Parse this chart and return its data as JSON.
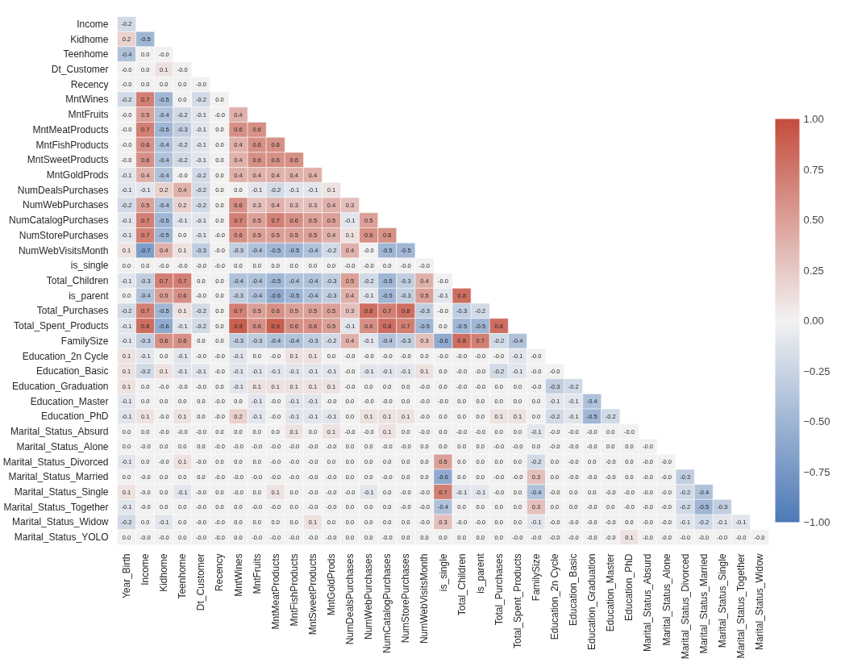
{
  "chart_data": {
    "type": "heatmap",
    "categories": [
      "Year_Birth",
      "Income",
      "Kidhome",
      "Teenhome",
      "Dt_Customer",
      "Recency",
      "MntWines",
      "MntFruits",
      "MntMeatProducts",
      "MntFishProducts",
      "MntSweetProducts",
      "MntGoldProds",
      "NumDealsPurchases",
      "NumWebPurchases",
      "NumCatalogPurchases",
      "NumStorePurchases",
      "NumWebVisitsMonth",
      "is_single",
      "Total_Children",
      "is_parent",
      "Total_Purchases",
      "Total_Spent_Products",
      "FamilySize",
      "Education_2n Cycle",
      "Education_Basic",
      "Education_Graduation",
      "Education_Master",
      "Education_PhD",
      "Marital_Status_Absurd",
      "Marital_Status_Alone",
      "Marital_Status_Divorced",
      "Marital_Status_Married",
      "Marital_Status_Single",
      "Marital_Status_Together",
      "Marital_Status_Widow"
    ],
    "y_categories": [
      "Income",
      "Kidhome",
      "Teenhome",
      "Dt_Customer",
      "Recency",
      "MntWines",
      "MntFruits",
      "MntMeatProducts",
      "MntFishProducts",
      "MntSweetProducts",
      "MntGoldProds",
      "NumDealsPurchases",
      "NumWebPurchases",
      "NumCatalogPurchases",
      "NumStorePurchases",
      "NumWebVisitsMonth",
      "is_single",
      "Total_Children",
      "is_parent",
      "Total_Purchases",
      "Total_Spent_Products",
      "FamilySize",
      "Education_2n Cycle",
      "Education_Basic",
      "Education_Graduation",
      "Education_Master",
      "Education_PhD",
      "Marital_Status_Absurd",
      "Marital_Status_Alone",
      "Marital_Status_Divorced",
      "Marital_Status_Married",
      "Marital_Status_Single",
      "Marital_Status_Together",
      "Marital_Status_Widow",
      "Marital_Status_YOLO"
    ],
    "cells": [
      [
        -0.2,
        null,
        null,
        null,
        null,
        null,
        null,
        null,
        null,
        null,
        null,
        null,
        null,
        null,
        null,
        null,
        null,
        null,
        null,
        null,
        null,
        null,
        null,
        null,
        null,
        null,
        null,
        null,
        null,
        null,
        null,
        null,
        null,
        null,
        null
      ],
      [
        0.2,
        -0.5,
        null,
        null,
        null,
        null,
        null,
        null,
        null,
        null,
        null,
        null,
        null,
        null,
        null,
        null,
        null,
        null,
        null,
        null,
        null,
        null,
        null,
        null,
        null,
        null,
        null,
        null,
        null,
        null,
        null,
        null,
        null,
        null,
        null
      ],
      [
        -0.4,
        0.0,
        -0.0,
        null,
        null,
        null,
        null,
        null,
        null,
        null,
        null,
        null,
        null,
        null,
        null,
        null,
        null,
        null,
        null,
        null,
        null,
        null,
        null,
        null,
        null,
        null,
        null,
        null,
        null,
        null,
        null,
        null,
        null,
        null,
        null
      ],
      [
        -0.0,
        0.0,
        0.1,
        -0.0,
        null,
        null,
        null,
        null,
        null,
        null,
        null,
        null,
        null,
        null,
        null,
        null,
        null,
        null,
        null,
        null,
        null,
        null,
        null,
        null,
        null,
        null,
        null,
        null,
        null,
        null,
        null,
        null,
        null,
        null,
        null
      ],
      [
        -0.0,
        0.0,
        0.0,
        0.0,
        -0.0,
        null,
        null,
        null,
        null,
        null,
        null,
        null,
        null,
        null,
        null,
        null,
        null,
        null,
        null,
        null,
        null,
        null,
        null,
        null,
        null,
        null,
        null,
        null,
        null,
        null,
        null,
        null,
        null,
        null,
        null
      ],
      [
        -0.2,
        0.7,
        -0.5,
        0.0,
        -0.2,
        0.0,
        null,
        null,
        null,
        null,
        null,
        null,
        null,
        null,
        null,
        null,
        null,
        null,
        null,
        null,
        null,
        null,
        null,
        null,
        null,
        null,
        null,
        null,
        null,
        null,
        null,
        null,
        null,
        null,
        null
      ],
      [
        -0.0,
        0.5,
        -0.4,
        -0.2,
        -0.1,
        -0.0,
        0.4,
        null,
        null,
        null,
        null,
        null,
        null,
        null,
        null,
        null,
        null,
        null,
        null,
        null,
        null,
        null,
        null,
        null,
        null,
        null,
        null,
        null,
        null,
        null,
        null,
        null,
        null,
        null,
        null
      ],
      [
        -0.0,
        0.7,
        -0.5,
        -0.3,
        -0.1,
        0.0,
        0.6,
        0.6,
        null,
        null,
        null,
        null,
        null,
        null,
        null,
        null,
        null,
        null,
        null,
        null,
        null,
        null,
        null,
        null,
        null,
        null,
        null,
        null,
        null,
        null,
        null,
        null,
        null,
        null,
        null
      ],
      [
        -0.0,
        0.6,
        -0.4,
        -0.2,
        -0.1,
        0.0,
        0.4,
        0.6,
        0.6,
        null,
        null,
        null,
        null,
        null,
        null,
        null,
        null,
        null,
        null,
        null,
        null,
        null,
        null,
        null,
        null,
        null,
        null,
        null,
        null,
        null,
        null,
        null,
        null,
        null,
        null
      ],
      [
        -0.0,
        0.6,
        -0.4,
        -0.2,
        -0.1,
        0.0,
        0.4,
        0.6,
        0.6,
        0.6,
        null,
        null,
        null,
        null,
        null,
        null,
        null,
        null,
        null,
        null,
        null,
        null,
        null,
        null,
        null,
        null,
        null,
        null,
        null,
        null,
        null,
        null,
        null,
        null,
        null
      ],
      [
        -0.1,
        0.4,
        -0.4,
        -0.0,
        -0.2,
        0.0,
        0.4,
        0.4,
        0.4,
        0.4,
        0.4,
        null,
        null,
        null,
        null,
        null,
        null,
        null,
        null,
        null,
        null,
        null,
        null,
        null,
        null,
        null,
        null,
        null,
        null,
        null,
        null,
        null,
        null,
        null,
        null
      ],
      [
        -0.1,
        -0.1,
        0.2,
        0.4,
        -0.2,
        0.0,
        0.0,
        -0.1,
        -0.2,
        -0.1,
        -0.1,
        0.1,
        null,
        null,
        null,
        null,
        null,
        null,
        null,
        null,
        null,
        null,
        null,
        null,
        null,
        null,
        null,
        null,
        null,
        null,
        null,
        null,
        null,
        null,
        null
      ],
      [
        -0.2,
        0.5,
        -0.4,
        0.2,
        -0.2,
        0.0,
        0.6,
        0.3,
        0.4,
        0.3,
        0.3,
        0.4,
        0.3,
        null,
        null,
        null,
        null,
        null,
        null,
        null,
        null,
        null,
        null,
        null,
        null,
        null,
        null,
        null,
        null,
        null,
        null,
        null,
        null,
        null,
        null
      ],
      [
        -0.1,
        0.7,
        -0.5,
        -0.1,
        -0.1,
        0.0,
        0.7,
        0.5,
        0.7,
        0.6,
        0.5,
        0.5,
        -0.1,
        0.5,
        null,
        null,
        null,
        null,
        null,
        null,
        null,
        null,
        null,
        null,
        null,
        null,
        null,
        null,
        null,
        null,
        null,
        null,
        null,
        null,
        null
      ],
      [
        -0.1,
        0.7,
        -0.5,
        0.0,
        -0.1,
        -0.0,
        0.6,
        0.5,
        0.5,
        0.5,
        0.5,
        0.4,
        0.1,
        0.6,
        0.6,
        null,
        null,
        null,
        null,
        null,
        null,
        null,
        null,
        null,
        null,
        null,
        null,
        null,
        null,
        null,
        null,
        null,
        null,
        null,
        null
      ],
      [
        0.1,
        -0.7,
        0.4,
        0.1,
        -0.3,
        -0.0,
        -0.3,
        -0.4,
        -0.5,
        -0.5,
        -0.4,
        -0.2,
        0.4,
        -0.0,
        -0.5,
        -0.5,
        null,
        null,
        null,
        null,
        null,
        null,
        null,
        null,
        null,
        null,
        null,
        null,
        null,
        null,
        null,
        null,
        null,
        null,
        null
      ],
      [
        0.0,
        0.0,
        -0.0,
        -0.0,
        -0.0,
        -0.0,
        0.0,
        0.0,
        0.0,
        0.0,
        0.0,
        0.0,
        -0.0,
        -0.0,
        0.0,
        -0.0,
        -0.0,
        null,
        null,
        null,
        null,
        null,
        null,
        null,
        null,
        null,
        null,
        null,
        null,
        null,
        null,
        null,
        null,
        null,
        null
      ],
      [
        -0.1,
        -0.3,
        0.7,
        0.7,
        0.0,
        0.0,
        -0.4,
        -0.4,
        -0.5,
        -0.4,
        -0.4,
        -0.3,
        0.5,
        -0.2,
        -0.5,
        -0.3,
        0.4,
        -0.0,
        null,
        null,
        null,
        null,
        null,
        null,
        null,
        null,
        null,
        null,
        null,
        null,
        null,
        null,
        null,
        null,
        null
      ],
      [
        0.0,
        -0.4,
        0.5,
        0.6,
        -0.0,
        0.0,
        -0.3,
        -0.4,
        -0.6,
        -0.5,
        -0.4,
        -0.3,
        0.4,
        -0.1,
        -0.5,
        -0.3,
        0.5,
        -0.1,
        0.8,
        null,
        null,
        null,
        null,
        null,
        null,
        null,
        null,
        null,
        null,
        null,
        null,
        null,
        null,
        null,
        null
      ],
      [
        -0.2,
        0.7,
        -0.5,
        0.1,
        -0.2,
        0.0,
        0.7,
        0.5,
        0.6,
        0.5,
        0.5,
        0.5,
        0.3,
        0.8,
        0.7,
        0.8,
        -0.3,
        -0.0,
        -0.3,
        -0.2,
        null,
        null,
        null,
        null,
        null,
        null,
        null,
        null,
        null,
        null,
        null,
        null,
        null,
        null,
        null
      ],
      [
        -0.1,
        0.8,
        -0.6,
        -0.1,
        -0.2,
        0.0,
        0.9,
        0.6,
        0.9,
        0.6,
        0.6,
        0.5,
        -0.1,
        0.6,
        0.8,
        0.7,
        -0.5,
        0.0,
        -0.5,
        -0.5,
        0.8,
        null,
        null,
        null,
        null,
        null,
        null,
        null,
        null,
        null,
        null,
        null,
        null,
        null,
        null
      ],
      [
        -0.1,
        -0.3,
        0.6,
        0.6,
        0.0,
        0.0,
        -0.3,
        -0.3,
        -0.4,
        -0.4,
        -0.3,
        -0.2,
        0.4,
        -0.1,
        -0.4,
        -0.3,
        0.3,
        -0.6,
        0.8,
        0.7,
        -0.2,
        -0.4,
        null,
        null,
        null,
        null,
        null,
        null,
        null,
        null,
        null,
        null,
        null,
        null,
        null
      ],
      [
        0.1,
        -0.1,
        0.0,
        -0.1,
        -0.0,
        -0.0,
        -0.1,
        0.0,
        -0.0,
        0.1,
        0.1,
        0.0,
        -0.0,
        -0.0,
        -0.0,
        -0.0,
        0.0,
        -0.0,
        -0.0,
        -0.0,
        -0.0,
        -0.1,
        -0.0,
        null,
        null,
        null,
        null,
        null,
        null,
        null,
        null,
        null,
        null,
        null,
        null
      ],
      [
        0.1,
        -0.2,
        0.1,
        -0.1,
        -0.1,
        -0.0,
        -0.1,
        -0.1,
        -0.1,
        -0.1,
        -0.1,
        -0.1,
        -0.0,
        -0.1,
        -0.1,
        -0.1,
        0.1,
        0.0,
        -0.0,
        -0.0,
        -0.2,
        -0.1,
        -0.0,
        -0.0,
        null,
        null,
        null,
        null,
        null,
        null,
        null,
        null,
        null,
        null,
        null
      ],
      [
        0.1,
        0.0,
        -0.0,
        -0.0,
        -0.0,
        0.0,
        -0.1,
        0.1,
        0.1,
        0.1,
        0.1,
        0.1,
        -0.0,
        0.0,
        0.0,
        0.0,
        -0.0,
        0.0,
        -0.0,
        -0.0,
        0.0,
        0.0,
        -0.0,
        -0.3,
        -0.2,
        null,
        null,
        null,
        null,
        null,
        null,
        null,
        null,
        null,
        null
      ],
      [
        -0.1,
        0.0,
        0.0,
        0.0,
        0.0,
        -0.0,
        0.0,
        -0.1,
        -0.0,
        -0.1,
        -0.1,
        -0.0,
        0.0,
        -0.0,
        -0.0,
        0.0,
        -0.0,
        -0.0,
        0.0,
        0.0,
        0.0,
        0.0,
        0.0,
        -0.1,
        -0.1,
        -0.4,
        null,
        null,
        null,
        null,
        null,
        null,
        null,
        null,
        null
      ],
      [
        -0.1,
        0.1,
        -0.0,
        0.1,
        0.0,
        -0.0,
        0.2,
        -0.1,
        -0.0,
        -0.1,
        -0.1,
        -0.1,
        0.0,
        0.1,
        0.1,
        0.1,
        -0.0,
        0.0,
        0.0,
        0.0,
        0.1,
        0.1,
        0.0,
        -0.2,
        -0.1,
        -0.5,
        -0.2,
        null,
        null,
        null,
        null,
        null,
        null,
        null,
        null
      ],
      [
        0.0,
        0.0,
        -0.0,
        -0.0,
        -0.0,
        0.0,
        0.0,
        0.0,
        0.0,
        0.1,
        0.0,
        0.1,
        -0.0,
        -0.0,
        0.1,
        0.0,
        -0.0,
        0.0,
        -0.0,
        -0.0,
        0.0,
        0.0,
        -0.1,
        -0.0,
        -0.0,
        -0.0,
        0.0,
        -0.0,
        null,
        null,
        null,
        null,
        null,
        null,
        null
      ],
      [
        0.0,
        -0.0,
        0.0,
        0.0,
        0.0,
        -0.0,
        -0.0,
        -0.0,
        -0.0,
        -0.0,
        -0.0,
        -0.0,
        0.0,
        0.0,
        -0.0,
        -0.0,
        0.0,
        0.0,
        0.0,
        0.0,
        -0.0,
        -0.0,
        0.0,
        -0.0,
        -0.0,
        -0.0,
        0.0,
        0.0,
        -0.0,
        null,
        null,
        null,
        null,
        null,
        null
      ],
      [
        -0.1,
        0.0,
        -0.0,
        0.1,
        -0.0,
        0.0,
        0.0,
        0.0,
        -0.0,
        -0.0,
        -0.0,
        0.0,
        0.0,
        0.0,
        0.0,
        0.0,
        0.0,
        0.5,
        0.0,
        0.0,
        0.0,
        0.0,
        -0.2,
        0.0,
        -0.0,
        0.0,
        -0.0,
        0.0,
        -0.0,
        -0.0,
        null,
        null,
        null,
        null,
        null
      ],
      [
        0.0,
        -0.0,
        0.0,
        0.0,
        0.0,
        -0.0,
        -0.0,
        -0.0,
        -0.0,
        -0.0,
        -0.0,
        -0.0,
        0.0,
        0.0,
        -0.0,
        0.0,
        0.0,
        -0.6,
        0.0,
        0.0,
        -0.0,
        -0.0,
        0.3,
        0.0,
        -0.0,
        -0.0,
        -0.0,
        0.0,
        -0.0,
        -0.0,
        -0.3,
        null,
        null,
        null,
        null
      ],
      [
        0.1,
        -0.0,
        0.0,
        -0.1,
        -0.0,
        0.0,
        -0.0,
        0.0,
        0.1,
        0.0,
        -0.0,
        -0.0,
        -0.0,
        -0.1,
        0.0,
        -0.0,
        -0.0,
        0.7,
        -0.1,
        -0.1,
        -0.0,
        0.0,
        -0.4,
        -0.0,
        0.0,
        0.0,
        -0.0,
        -0.0,
        -0.0,
        -0.0,
        -0.2,
        -0.4,
        null,
        null,
        null
      ],
      [
        -0.1,
        -0.0,
        0.0,
        0.0,
        -0.0,
        0.0,
        0.0,
        -0.0,
        -0.0,
        0.0,
        -0.0,
        -0.0,
        0.0,
        0.0,
        0.0,
        -0.0,
        -0.0,
        -0.4,
        0.0,
        0.0,
        0.0,
        0.0,
        0.3,
        0.0,
        0.0,
        -0.0,
        0.0,
        -0.0,
        -0.0,
        -0.0,
        -0.2,
        -0.5,
        -0.3,
        null,
        null
      ],
      [
        -0.2,
        0.0,
        -0.1,
        0.0,
        -0.0,
        -0.0,
        0.0,
        0.0,
        0.0,
        0.0,
        0.1,
        0.0,
        0.0,
        0.0,
        0.0,
        0.0,
        -0.0,
        0.3,
        -0.0,
        -0.0,
        0.0,
        0.0,
        -0.1,
        -0.0,
        -0.0,
        -0.0,
        -0.0,
        0.0,
        -0.0,
        -0.0,
        -0.1,
        -0.2,
        -0.1,
        -0.1,
        null
      ],
      [
        0.0,
        -0.0,
        -0.0,
        0.0,
        -0.0,
        -0.0,
        0.0,
        -0.0,
        -0.0,
        -0.0,
        -0.0,
        -0.0,
        0.0,
        0.0,
        -0.0,
        0.0,
        0.0,
        0.0,
        0.0,
        0.0,
        0.0,
        -0.0,
        -0.0,
        -0.0,
        -0.0,
        -0.0,
        -0.0,
        0.1,
        -0.0,
        -0.0,
        -0.0,
        -0.0,
        -0.0,
        -0.0,
        -0.0
      ]
    ],
    "cell_labels": [
      [
        "-0.2",
        null,
        null,
        null,
        null,
        null,
        null,
        null,
        null,
        null,
        null,
        null,
        null,
        null,
        null,
        null,
        null,
        null,
        null,
        null,
        null,
        null,
        null,
        null,
        null,
        null,
        null,
        null,
        null,
        null,
        null,
        null,
        null,
        null,
        null
      ],
      [
        "0.2",
        "-0.5",
        null,
        null,
        null,
        null,
        null,
        null,
        null,
        null,
        null,
        null,
        null,
        null,
        null,
        null,
        null,
        null,
        null,
        null,
        null,
        null,
        null,
        null,
        null,
        null,
        null,
        null,
        null,
        null,
        null,
        null,
        null,
        null,
        null
      ],
      [
        "-0.4",
        "0.0",
        "-0.0",
        null,
        null,
        null,
        null,
        null,
        null,
        null,
        null,
        null,
        null,
        null,
        null,
        null,
        null,
        null,
        null,
        null,
        null,
        null,
        null,
        null,
        null,
        null,
        null,
        null,
        null,
        null,
        null,
        null,
        null,
        null,
        null
      ],
      [
        "-0.0",
        "0.0",
        "0.1",
        "-0.0",
        null,
        null,
        null,
        null,
        null,
        null,
        null,
        null,
        null,
        null,
        null,
        null,
        null,
        null,
        null,
        null,
        null,
        null,
        null,
        null,
        null,
        null,
        null,
        null,
        null,
        null,
        null,
        null,
        null,
        null,
        null
      ],
      [
        "-0.0",
        "0.0",
        "0.0",
        "0.0",
        "-0.0",
        null,
        null,
        null,
        null,
        null,
        null,
        null,
        null,
        null,
        null,
        null,
        null,
        null,
        null,
        null,
        null,
        null,
        null,
        null,
        null,
        null,
        null,
        null,
        null,
        null,
        null,
        null,
        null,
        null,
        null
      ],
      [
        "-0.2",
        "0.7",
        "-0.5",
        "0.0",
        "-0.2",
        "0.0",
        null,
        null,
        null,
        null,
        null,
        null,
        null,
        null,
        null,
        null,
        null,
        null,
        null,
        null,
        null,
        null,
        null,
        null,
        null,
        null,
        null,
        null,
        null,
        null,
        null,
        null,
        null,
        null,
        null
      ],
      [
        "-0.0",
        "0.5",
        "-0.4",
        "-0.2",
        "-0.1",
        "-0.0",
        "0.4",
        null,
        null,
        null,
        null,
        null,
        null,
        null,
        null,
        null,
        null,
        null,
        null,
        null,
        null,
        null,
        null,
        null,
        null,
        null,
        null,
        null,
        null,
        null,
        null,
        null,
        null,
        null,
        null
      ],
      [
        "-0.0",
        "0.7",
        "-0.5",
        "-0.3",
        "-0.1",
        "0.0",
        "0.6",
        "0.6",
        null,
        null,
        null,
        null,
        null,
        null,
        null,
        null,
        null,
        null,
        null,
        null,
        null,
        null,
        null,
        null,
        null,
        null,
        null,
        null,
        null,
        null,
        null,
        null,
        null,
        null,
        null
      ],
      [
        "-0.0",
        "0.6",
        "-0.4",
        "-0.2",
        "-0.1",
        "0.0",
        "0.4",
        "0.6",
        "0.6",
        null,
        null,
        null,
        null,
        null,
        null,
        null,
        null,
        null,
        null,
        null,
        null,
        null,
        null,
        null,
        null,
        null,
        null,
        null,
        null,
        null,
        null,
        null,
        null,
        null,
        null
      ],
      [
        "-0.0",
        "0.6",
        "-0.4",
        "-0.2",
        "-0.1",
        "0.0",
        "0.4",
        "0.6",
        "0.6",
        "0.6",
        null,
        null,
        null,
        null,
        null,
        null,
        null,
        null,
        null,
        null,
        null,
        null,
        null,
        null,
        null,
        null,
        null,
        null,
        null,
        null,
        null,
        null,
        null,
        null,
        null
      ],
      [
        "-0.1",
        "0.4",
        "-0.4",
        "-0.0",
        "-0.2",
        "0.0",
        "0.4",
        "0.4",
        "0.4",
        "0.4",
        "0.4",
        null,
        null,
        null,
        null,
        null,
        null,
        null,
        null,
        null,
        null,
        null,
        null,
        null,
        null,
        null,
        null,
        null,
        null,
        null,
        null,
        null,
        null,
        null,
        null
      ],
      [
        "-0.1",
        "-0.1",
        "0.2",
        "0.4",
        "-0.2",
        "0.0",
        "0.0",
        "-0.1",
        "-0.2",
        "-0.1",
        "-0.1",
        "0.1",
        null,
        null,
        null,
        null,
        null,
        null,
        null,
        null,
        null,
        null,
        null,
        null,
        null,
        null,
        null,
        null,
        null,
        null,
        null,
        null,
        null,
        null,
        null
      ],
      [
        "-0.2",
        "0.5",
        "-0.4",
        "0.2",
        "-0.2",
        "0.0",
        "0.6",
        "0.3",
        "0.4",
        "0.3",
        "0.3",
        "0.4",
        "0.3",
        null,
        null,
        null,
        null,
        null,
        null,
        null,
        null,
        null,
        null,
        null,
        null,
        null,
        null,
        null,
        null,
        null,
        null,
        null,
        null,
        null,
        null
      ],
      [
        "-0.1",
        "0.7",
        "-0.5",
        "-0.1",
        "-0.1",
        "0.0",
        "0.7",
        "0.5",
        "0.7",
        "0.6",
        "0.5",
        "0.5",
        "-0.1",
        "0.5",
        null,
        null,
        null,
        null,
        null,
        null,
        null,
        null,
        null,
        null,
        null,
        null,
        null,
        null,
        null,
        null,
        null,
        null,
        null,
        null,
        null
      ],
      [
        "-0.1",
        "0.7",
        "-0.5",
        "0.0",
        "-0.1",
        "-0.0",
        "0.6",
        "0.5",
        "0.5",
        "0.5",
        "0.5",
        "0.4",
        "0.1",
        "0.6",
        "0.6",
        null,
        null,
        null,
        null,
        null,
        null,
        null,
        null,
        null,
        null,
        null,
        null,
        null,
        null,
        null,
        null,
        null,
        null,
        null,
        null
      ],
      [
        "0.1",
        "-0.7",
        "0.4",
        "0.1",
        "-0.3",
        "-0.0",
        "-0.3",
        "-0.4",
        "-0.5",
        "-0.5",
        "-0.4",
        "-0.2",
        "0.4",
        "-0.0",
        "-0.5",
        "-0.5",
        null,
        null,
        null,
        null,
        null,
        null,
        null,
        null,
        null,
        null,
        null,
        null,
        null,
        null,
        null,
        null,
        null,
        null,
        null
      ],
      [
        "0.0",
        "0.0",
        "-0.0",
        "-0.0",
        "-0.0",
        "-0.0",
        "0.0",
        "0.0",
        "0.0",
        "0.0",
        "0.0",
        "0.0",
        "-0.0",
        "-0.0",
        "0.0",
        "-0.0",
        "-0.0",
        null,
        null,
        null,
        null,
        null,
        null,
        null,
        null,
        null,
        null,
        null,
        null,
        null,
        null,
        null,
        null,
        null,
        null
      ],
      [
        "-0.1",
        "-0.3",
        "0.7",
        "0.7",
        "0.0",
        "0.0",
        "-0.4",
        "-0.4",
        "-0.5",
        "-0.4",
        "-0.4",
        "-0.3",
        "0.5",
        "-0.2",
        "-0.5",
        "-0.3",
        "0.4",
        "-0.0",
        null,
        null,
        null,
        null,
        null,
        null,
        null,
        null,
        null,
        null,
        null,
        null,
        null,
        null,
        null,
        null,
        null
      ],
      [
        "0.0",
        "-0.4",
        "0.5",
        "0.6",
        "-0.0",
        "0.0",
        "-0.3",
        "-0.4",
        "-0.6",
        "-0.5",
        "-0.4",
        "-0.3",
        "0.4",
        "-0.1",
        "-0.5",
        "-0.3",
        "0.5",
        "-0.1",
        "0.8",
        null,
        null,
        null,
        null,
        null,
        null,
        null,
        null,
        null,
        null,
        null,
        null,
        null,
        null,
        null,
        null
      ],
      [
        "-0.2",
        "0.7",
        "-0.5",
        "0.1",
        "-0.2",
        "0.0",
        "0.7",
        "0.5",
        "0.6",
        "0.5",
        "0.5",
        "0.5",
        "0.3",
        "0.8",
        "0.7",
        "0.8",
        "-0.3",
        "-0.0",
        "-0.3",
        "-0.2",
        null,
        null,
        null,
        null,
        null,
        null,
        null,
        null,
        null,
        null,
        null,
        null,
        null,
        null,
        null
      ],
      [
        "-0.1",
        "0.8",
        "-0.6",
        "-0.1",
        "-0.2",
        "0.0",
        "0.9",
        "0.6",
        "0.9",
        "0.6",
        "0.6",
        "0.5",
        "-0.1",
        "0.6",
        "0.8",
        "0.7",
        "-0.5",
        "0.0",
        "-0.5",
        "-0.5",
        "0.8",
        null,
        null,
        null,
        null,
        null,
        null,
        null,
        null,
        null,
        null,
        null,
        null,
        null,
        null
      ],
      [
        "-0.1",
        "-0.3",
        "0.6",
        "0.6",
        "0.0",
        "0.0",
        "-0.3",
        "-0.3",
        "-0.4",
        "-0.4",
        "-0.3",
        "-0.2",
        "0.4",
        "-0.1",
        "-0.4",
        "-0.3",
        "0.3",
        "-0.6",
        "0.8",
        "0.7",
        "-0.2",
        "-0.4",
        null,
        null,
        null,
        null,
        null,
        null,
        null,
        null,
        null,
        null,
        null,
        null,
        null
      ],
      [
        "0.1",
        "-0.1",
        "0.0",
        "-0.1",
        "-0.0",
        "-0.0",
        "-0.1",
        "0.0",
        "-0.0",
        "0.1",
        "0.1",
        "0.0",
        "-0.0",
        "-0.0",
        "-0.0",
        "-0.0",
        "0.0",
        "-0.0",
        "-0.0",
        "-0.0",
        "-0.0",
        "-0.1",
        "-0.0",
        null,
        null,
        null,
        null,
        null,
        null,
        null,
        null,
        null,
        null,
        null,
        null
      ],
      [
        "0.1",
        "-0.2",
        "0.1",
        "-0.1",
        "-0.1",
        "-0.0",
        "-0.1",
        "-0.1",
        "-0.1",
        "-0.1",
        "-0.1",
        "-0.1",
        "-0.0",
        "-0.1",
        "-0.1",
        "-0.1",
        "0.1",
        "0.0",
        "-0.0",
        "-0.0",
        "-0.2",
        "-0.1",
        "-0.0",
        "-0.0",
        null,
        null,
        null,
        null,
        null,
        null,
        null,
        null,
        null,
        null,
        null
      ],
      [
        "0.1",
        "0.0",
        "-0.0",
        "-0.0",
        "-0.0",
        "0.0",
        "-0.1",
        "0.1",
        "0.1",
        "0.1",
        "0.1",
        "0.1",
        "-0.0",
        "0.0",
        "0.0",
        "0.0",
        "-0.0",
        "0.0",
        "-0.0",
        "-0.0",
        "0.0",
        "0.0",
        "-0.0",
        "-0.3",
        "-0.2",
        null,
        null,
        null,
        null,
        null,
        null,
        null,
        null,
        null,
        null
      ],
      [
        "-0.1",
        "0.0",
        "0.0",
        "0.0",
        "0.0",
        "-0.0",
        "0.0",
        "-0.1",
        "-0.0",
        "-0.1",
        "-0.1",
        "-0.0",
        "0.0",
        "-0.0",
        "-0.0",
        "0.0",
        "-0.0",
        "-0.0",
        "0.0",
        "0.0",
        "0.0",
        "0.0",
        "0.0",
        "-0.1",
        "-0.1",
        "-0.4",
        null,
        null,
        null,
        null,
        null,
        null,
        null,
        null,
        null
      ],
      [
        "-0.1",
        "0.1",
        "-0.0",
        "0.1",
        "0.0",
        "-0.0",
        "0.2",
        "-0.1",
        "-0.0",
        "-0.1",
        "-0.1",
        "-0.1",
        "0.0",
        "0.1",
        "0.1",
        "0.1",
        "-0.0",
        "0.0",
        "0.0",
        "0.0",
        "0.1",
        "0.1",
        "0.0",
        "-0.2",
        "-0.1",
        "-0.5",
        "-0.2",
        null,
        null,
        null,
        null,
        null,
        null,
        null,
        null
      ],
      [
        "0.0",
        "0.0",
        "-0.0",
        "-0.0",
        "-0.0",
        "0.0",
        "0.0",
        "0.0",
        "0.0",
        "0.1",
        "0.0",
        "0.1",
        "-0.0",
        "-0.0",
        "0.1",
        "0.0",
        "-0.0",
        "0.0",
        "-0.0",
        "-0.0",
        "0.0",
        "0.0",
        "-0.1",
        "-0.0",
        "-0.0",
        "-0.0",
        "0.0",
        "-0.0",
        null,
        null,
        null,
        null,
        null,
        null,
        null
      ],
      [
        "0.0",
        "-0.0",
        "0.0",
        "0.0",
        "0.0",
        "-0.0",
        "-0.0",
        "-0.0",
        "-0.0",
        "-0.0",
        "-0.0",
        "-0.0",
        "0.0",
        "0.0",
        "-0.0",
        "-0.0",
        "0.0",
        "0.0",
        "0.0",
        "0.0",
        "-0.0",
        "-0.0",
        "0.0",
        "-0.0",
        "-0.0",
        "-0.0",
        "0.0",
        "0.0",
        "-0.0",
        null,
        null,
        null,
        null,
        null,
        null
      ],
      [
        "-0.1",
        "0.0",
        "-0.0",
        "0.1",
        "-0.0",
        "0.0",
        "0.0",
        "0.0",
        "-0.0",
        "-0.0",
        "-0.0",
        "0.0",
        "0.0",
        "0.0",
        "0.0",
        "0.0",
        "0.0",
        "0.5",
        "0.0",
        "0.0",
        "0.0",
        "0.0",
        "-0.2",
        "0.0",
        "-0.0",
        "0.0",
        "-0.0",
        "0.0",
        "-0.0",
        "-0.0",
        null,
        null,
        null,
        null,
        null
      ],
      [
        "0.0",
        "-0.0",
        "0.0",
        "0.0",
        "0.0",
        "-0.0",
        "-0.0",
        "-0.0",
        "-0.0",
        "-0.0",
        "-0.0",
        "-0.0",
        "0.0",
        "0.0",
        "-0.0",
        "0.0",
        "0.0",
        "-0.6",
        "0.0",
        "0.0",
        "-0.0",
        "-0.0",
        "0.3",
        "0.0",
        "-0.0",
        "-0.0",
        "-0.0",
        "0.0",
        "-0.0",
        "-0.0",
        "-0.3",
        null,
        null,
        null,
        null
      ],
      [
        "0.1",
        "-0.0",
        "0.0",
        "-0.1",
        "-0.0",
        "0.0",
        "-0.0",
        "0.0",
        "0.1",
        "0.0",
        "-0.0",
        "-0.0",
        "-0.0",
        "-0.1",
        "0.0",
        "-0.0",
        "-0.0",
        "0.7",
        "-0.1",
        "-0.1",
        "-0.0",
        "0.0",
        "-0.4",
        "-0.0",
        "0.0",
        "0.0",
        "-0.0",
        "-0.0",
        "-0.0",
        "-0.0",
        "-0.2",
        "-0.4",
        null,
        null,
        null
      ],
      [
        "-0.1",
        "-0.0",
        "0.0",
        "0.0",
        "-0.0",
        "0.0",
        "0.0",
        "-0.0",
        "-0.0",
        "0.0",
        "-0.0",
        "-0.0",
        "0.0",
        "0.0",
        "0.0",
        "-0.0",
        "-0.0",
        "-0.4",
        "0.0",
        "0.0",
        "0.0",
        "0.0",
        "0.3",
        "0.0",
        "0.0",
        "-0.0",
        "0.0",
        "-0.0",
        "-0.0",
        "-0.0",
        "-0.2",
        "-0.5",
        "-0.3",
        null,
        null
      ],
      [
        "-0.2",
        "0.0",
        "-0.1",
        "0.0",
        "-0.0",
        "-0.0",
        "0.0",
        "0.0",
        "0.0",
        "0.0",
        "0.1",
        "0.0",
        "0.0",
        "0.0",
        "0.0",
        "0.0",
        "-0.0",
        "0.3",
        "-0.0",
        "-0.0",
        "0.0",
        "0.0",
        "-0.1",
        "-0.0",
        "-0.0",
        "-0.0",
        "-0.0",
        "0.0",
        "-0.0",
        "-0.0",
        "-0.1",
        "-0.2",
        "-0.1",
        "-0.1",
        null
      ],
      [
        "0.0",
        "-0.0",
        "-0.0",
        "0.0",
        "-0.0",
        "-0.0",
        "0.0",
        "-0.0",
        "-0.0",
        "-0.0",
        "-0.0",
        "-0.0",
        "0.0",
        "0.0",
        "-0.0",
        "0.0",
        "0.0",
        "0.0",
        "0.0",
        "0.0",
        "0.0",
        "-0.0",
        "-0.0",
        "-0.0",
        "-0.0",
        "-0.0",
        "-0.0",
        "0.1",
        "-0.0",
        "-0.0",
        "-0.0",
        "-0.0",
        "-0.0",
        "-0.0",
        "-0.0"
      ]
    ],
    "data_labels": true,
    "clim": [
      -1.0,
      1.0
    ],
    "cticks": [
      {
        "value": -1.0,
        "label": "−1.00"
      },
      {
        "value": -0.75,
        "label": "−0.75"
      },
      {
        "value": -0.5,
        "label": "−0.50"
      },
      {
        "value": -0.25,
        "label": "−0.25"
      },
      {
        "value": 0.0,
        "label": "0.00"
      },
      {
        "value": 0.25,
        "label": "0.25"
      },
      {
        "value": 0.5,
        "label": "0.50"
      },
      {
        "value": 0.75,
        "label": "0.75"
      },
      {
        "value": 1.0,
        "label": "1.00"
      }
    ]
  }
}
